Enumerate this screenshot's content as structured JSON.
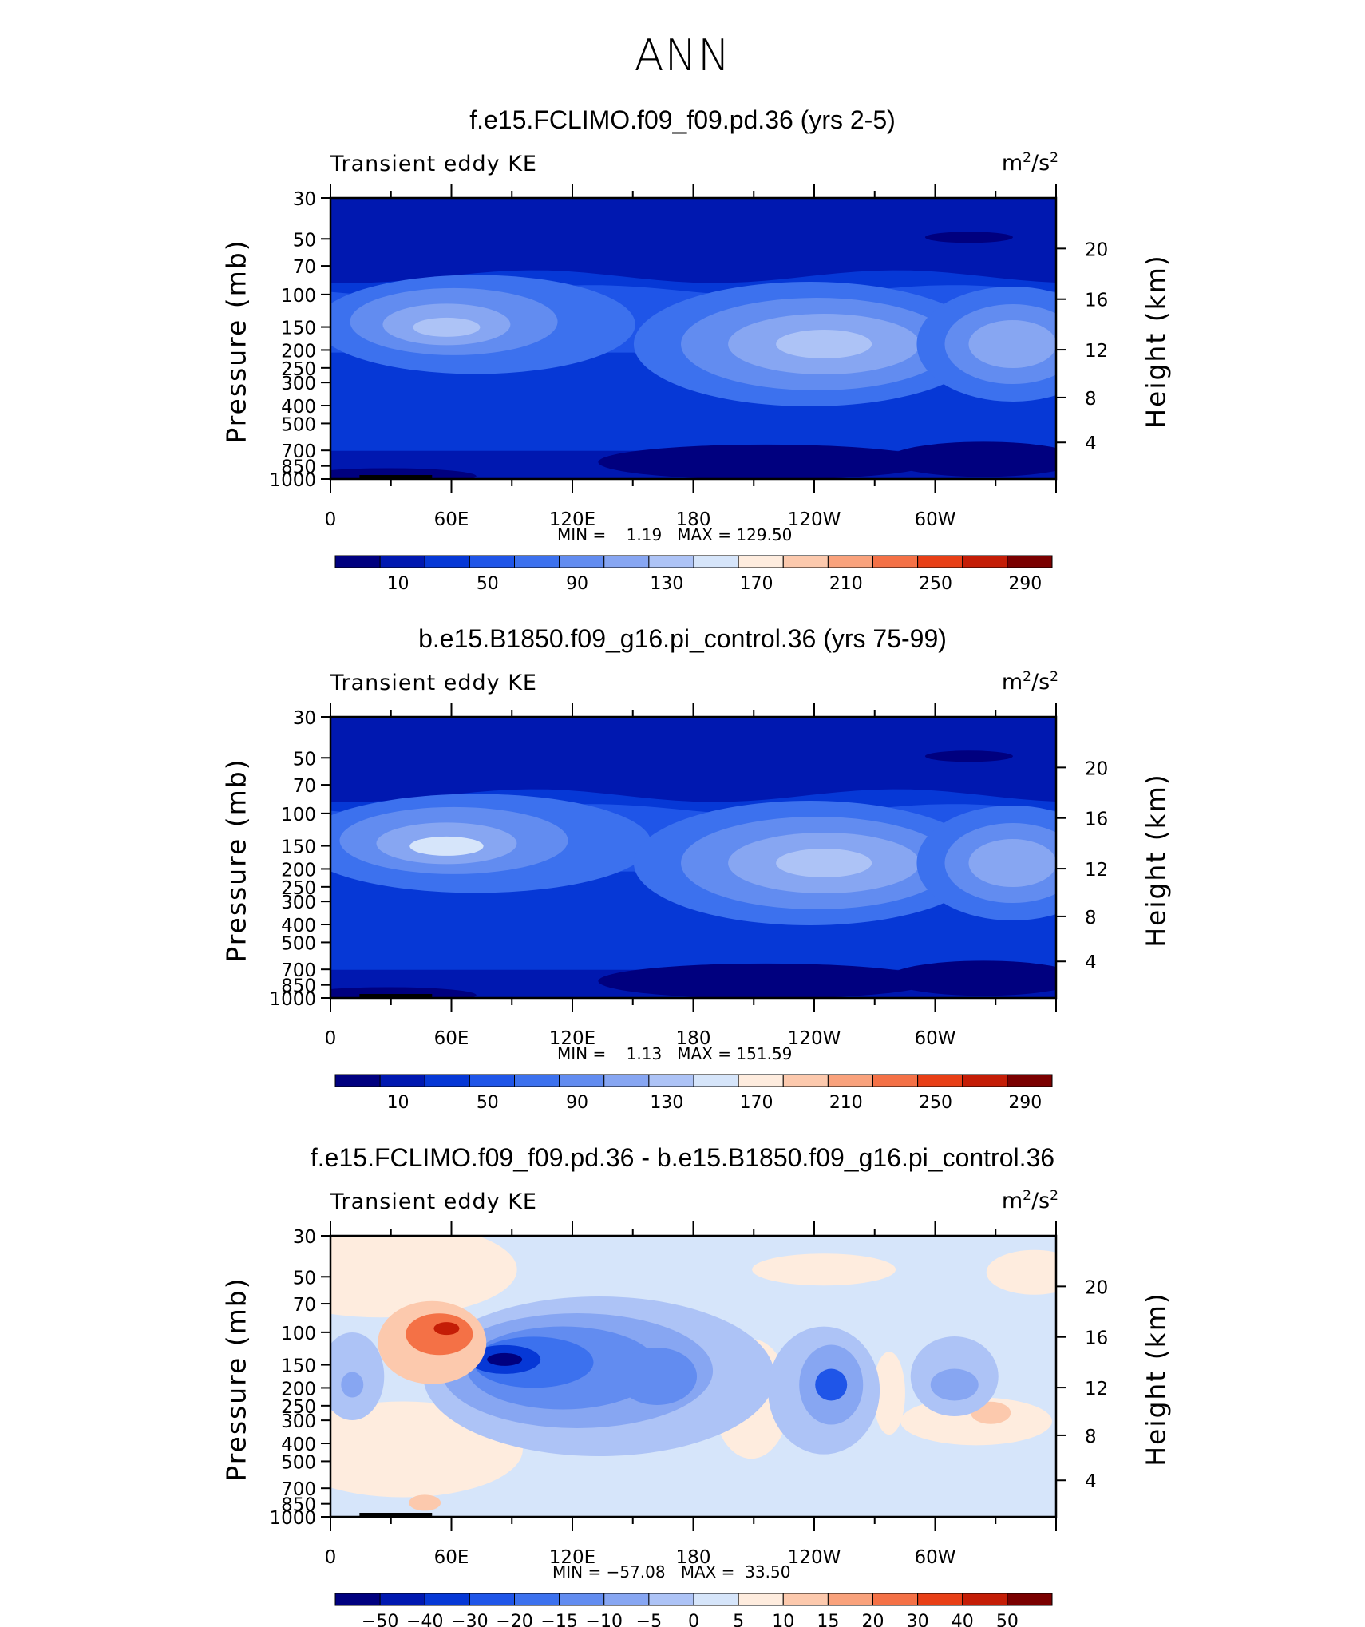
{
  "main_title": "ANN",
  "colors": {
    "abs_levels": [
      "#00007f",
      "#0018b0",
      "#0638d6",
      "#1f55e8",
      "#3c71ee",
      "#628cf0",
      "#87a6f2",
      "#adc3f6",
      "#d6e5fa",
      "#feecde",
      "#fcc9ad",
      "#f9a27c",
      "#f47146",
      "#e83f16",
      "#c41d06",
      "#7a0000"
    ],
    "diff_levels": [
      "#00007f",
      "#0018b0",
      "#0638d6",
      "#1f55e8",
      "#3c71ee",
      "#628cf0",
      "#87a6f2",
      "#adc3f6",
      "#d6e5fa",
      "#feecde",
      "#fcc9ad",
      "#f9a27c",
      "#f47146",
      "#e83f16",
      "#c41d06",
      "#7a0000"
    ]
  },
  "chart_data": [
    {
      "type": "heatmap",
      "title": "f.e15.FCLIMO.f09_f09.pd.36 (yrs 2-5)",
      "left_label": "Transient eddy KE",
      "units": "m²/s²",
      "units_base": "m",
      "units_sup1": "2",
      "units_mid": "/s",
      "units_sup2": "2",
      "ylabel": "Pressure (mb)",
      "ylabel_right": "Height (km)",
      "yticks": [
        "30",
        "50",
        "70",
        "100",
        "150",
        "200",
        "250",
        "300",
        "400",
        "500",
        "700",
        "850",
        "1000"
      ],
      "ytick_values": [
        30,
        50,
        70,
        100,
        150,
        200,
        250,
        300,
        400,
        500,
        700,
        850,
        1000
      ],
      "yticks_right": [
        "20",
        "16",
        "12",
        "8",
        "4"
      ],
      "xticks": [
        "0",
        "60E",
        "120E",
        "180",
        "120W",
        "60W"
      ],
      "xlim": [
        0,
        360
      ],
      "ylim": [
        1000,
        30
      ],
      "yscale": "log",
      "min_label": "MIN =",
      "min_value": "1.19",
      "max_label": "MAX =",
      "max_value": "129.50",
      "colorbar_labels": [
        "10",
        "50",
        "90",
        "130",
        "170",
        "210",
        "250",
        "290"
      ]
    },
    {
      "type": "heatmap",
      "title": "b.e15.B1850.f09_g16.pi_control.36 (yrs 75-99)",
      "left_label": "Transient eddy KE",
      "units": "m²/s²",
      "units_base": "m",
      "units_sup1": "2",
      "units_mid": "/s",
      "units_sup2": "2",
      "ylabel": "Pressure (mb)",
      "ylabel_right": "Height (km)",
      "yticks": [
        "30",
        "50",
        "70",
        "100",
        "150",
        "200",
        "250",
        "300",
        "400",
        "500",
        "700",
        "850",
        "1000"
      ],
      "ytick_values": [
        30,
        50,
        70,
        100,
        150,
        200,
        250,
        300,
        400,
        500,
        700,
        850,
        1000
      ],
      "yticks_right": [
        "20",
        "16",
        "12",
        "8",
        "4"
      ],
      "xticks": [
        "0",
        "60E",
        "120E",
        "180",
        "120W",
        "60W"
      ],
      "xlim": [
        0,
        360
      ],
      "ylim": [
        1000,
        30
      ],
      "yscale": "log",
      "min_label": "MIN =",
      "min_value": "1.13",
      "max_label": "MAX =",
      "max_value": "151.59",
      "colorbar_labels": [
        "10",
        "50",
        "90",
        "130",
        "170",
        "210",
        "250",
        "290"
      ]
    },
    {
      "type": "heatmap",
      "title": "f.e15.FCLIMO.f09_f09.pd.36 - b.e15.B1850.f09_g16.pi_control.36",
      "left_label": "Transient eddy KE",
      "units": "m²/s²",
      "units_base": "m",
      "units_sup1": "2",
      "units_mid": "/s",
      "units_sup2": "2",
      "ylabel": "Pressure (mb)",
      "ylabel_right": "Height (km)",
      "yticks": [
        "30",
        "50",
        "70",
        "100",
        "150",
        "200",
        "250",
        "300",
        "400",
        "500",
        "700",
        "850",
        "1000"
      ],
      "ytick_values": [
        30,
        50,
        70,
        100,
        150,
        200,
        250,
        300,
        400,
        500,
        700,
        850,
        1000
      ],
      "yticks_right": [
        "20",
        "16",
        "12",
        "8",
        "4"
      ],
      "xticks": [
        "0",
        "60E",
        "120E",
        "180",
        "120W",
        "60W"
      ],
      "xlim": [
        0,
        360
      ],
      "ylim": [
        1000,
        30
      ],
      "yscale": "log",
      "min_label": "MIN =",
      "min_value": "−57.08",
      "max_label": "MAX =",
      "max_value": "33.50",
      "colorbar_labels": [
        "−50",
        "−40",
        "−30",
        "−20",
        "−15",
        "−10",
        "−5",
        "0",
        "5",
        "10",
        "15",
        "20",
        "30",
        "40",
        "50"
      ]
    }
  ]
}
